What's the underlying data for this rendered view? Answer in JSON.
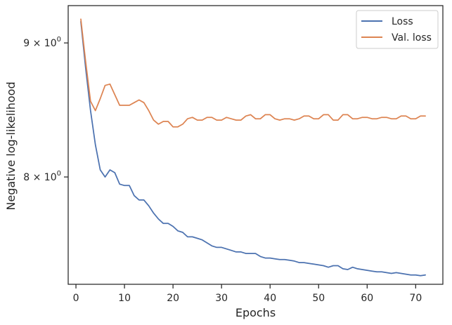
{
  "chart_data": {
    "type": "line",
    "xlabel": "Epochs",
    "ylabel": "Negative log-likelihood",
    "xlim": [
      -1.6,
      75.6
    ],
    "ylim": [
      7.28,
      9.3
    ],
    "y_scale": "log",
    "grid": false,
    "legend_position": "top-right",
    "x_ticks": [
      0,
      10,
      20,
      30,
      40,
      50,
      60,
      70
    ],
    "x_tick_labels": [
      "0",
      "10",
      "20",
      "30",
      "40",
      "50",
      "60",
      "70"
    ],
    "y_ticks": [
      8,
      9
    ],
    "y_tick_labels": [
      {
        "base": "8",
        "sup": "0"
      },
      {
        "base": "9",
        "sup": "0"
      }
    ],
    "x": [
      1,
      2,
      3,
      4,
      5,
      6,
      7,
      8,
      9,
      10,
      11,
      12,
      13,
      14,
      15,
      16,
      17,
      18,
      19,
      20,
      21,
      22,
      23,
      24,
      25,
      26,
      27,
      28,
      29,
      30,
      31,
      32,
      33,
      34,
      35,
      36,
      37,
      38,
      39,
      40,
      41,
      42,
      43,
      44,
      45,
      46,
      47,
      48,
      49,
      50,
      51,
      52,
      53,
      54,
      55,
      56,
      57,
      58,
      59,
      60,
      61,
      62,
      63,
      64,
      65,
      66,
      67,
      68,
      69,
      70,
      71,
      72
    ],
    "series": [
      {
        "name": "Loss",
        "color": "#4c72b0",
        "values": [
          9.17,
          8.8,
          8.48,
          8.23,
          8.05,
          8.0,
          8.05,
          8.03,
          7.95,
          7.94,
          7.94,
          7.87,
          7.84,
          7.84,
          7.8,
          7.75,
          7.71,
          7.68,
          7.68,
          7.66,
          7.63,
          7.62,
          7.59,
          7.59,
          7.58,
          7.57,
          7.55,
          7.53,
          7.52,
          7.52,
          7.51,
          7.5,
          7.49,
          7.49,
          7.48,
          7.48,
          7.48,
          7.46,
          7.45,
          7.45,
          7.445,
          7.44,
          7.44,
          7.435,
          7.43,
          7.42,
          7.42,
          7.415,
          7.41,
          7.405,
          7.4,
          7.39,
          7.4,
          7.4,
          7.38,
          7.375,
          7.39,
          7.38,
          7.375,
          7.37,
          7.365,
          7.36,
          7.36,
          7.355,
          7.35,
          7.355,
          7.35,
          7.345,
          7.34,
          7.34,
          7.335,
          7.34
        ]
      },
      {
        "name": "Val. loss",
        "color": "#dd8452",
        "values": [
          9.19,
          8.85,
          8.55,
          8.48,
          8.57,
          8.67,
          8.68,
          8.6,
          8.52,
          8.52,
          8.52,
          8.54,
          8.56,
          8.54,
          8.48,
          8.41,
          8.38,
          8.4,
          8.4,
          8.36,
          8.36,
          8.38,
          8.42,
          8.43,
          8.41,
          8.41,
          8.43,
          8.43,
          8.41,
          8.41,
          8.43,
          8.42,
          8.41,
          8.41,
          8.44,
          8.45,
          8.42,
          8.42,
          8.45,
          8.45,
          8.42,
          8.41,
          8.42,
          8.42,
          8.41,
          8.42,
          8.44,
          8.44,
          8.42,
          8.42,
          8.45,
          8.45,
          8.41,
          8.41,
          8.45,
          8.45,
          8.42,
          8.42,
          8.43,
          8.43,
          8.42,
          8.42,
          8.43,
          8.43,
          8.42,
          8.42,
          8.44,
          8.44,
          8.42,
          8.42,
          8.44,
          8.44
        ]
      }
    ]
  }
}
